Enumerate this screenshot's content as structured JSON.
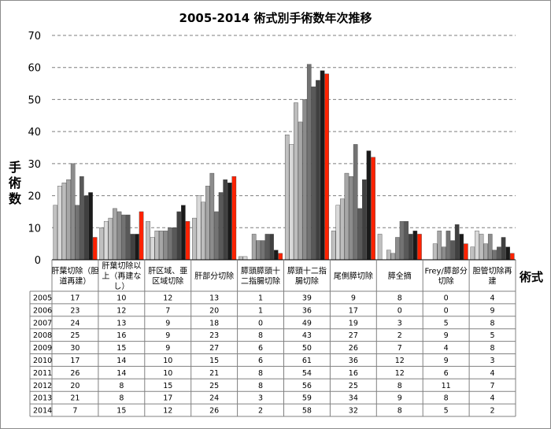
{
  "chart_data": {
    "type": "bar",
    "title": "2005-2014 術式別手術数年次推移",
    "ylabel": "手術数",
    "xlabel": "術式",
    "ylim": [
      0,
      70
    ],
    "yticks": [
      0,
      10,
      20,
      30,
      40,
      50,
      60,
      70
    ],
    "grid": true,
    "categories": [
      [
        "肝葉切除（胆",
        "道再建）"
      ],
      [
        "肝葉切除以",
        "上（再建な",
        "し）"
      ],
      [
        "肝区域、亜",
        "区域切除"
      ],
      [
        "肝部分切除"
      ],
      [
        "膵頭膵頭十",
        "二指腸切除"
      ],
      [
        "膵頭十二指",
        "腸切除"
      ],
      [
        "尾側膵切除"
      ],
      [
        "膵全摘"
      ],
      [
        "Frey/膵部分",
        "切除"
      ],
      [
        "胆管切除再",
        "建"
      ]
    ],
    "series": [
      {
        "name": "2005",
        "color": "#c0c0c0",
        "values": [
          17,
          10,
          12,
          13,
          1,
          39,
          9,
          8,
          0,
          4
        ]
      },
      {
        "name": "2006",
        "color": "#d9d9d9",
        "values": [
          23,
          12,
          7,
          20,
          1,
          36,
          17,
          0,
          0,
          9
        ]
      },
      {
        "name": "2007",
        "color": "#bdbdbd",
        "values": [
          24,
          13,
          9,
          18,
          0,
          49,
          19,
          3,
          5,
          8
        ]
      },
      {
        "name": "2008",
        "color": "#a6a6a6",
        "values": [
          25,
          16,
          9,
          23,
          8,
          43,
          27,
          2,
          9,
          5
        ]
      },
      {
        "name": "2009",
        "color": "#8c8c8c",
        "values": [
          30,
          15,
          9,
          27,
          6,
          50,
          26,
          7,
          4,
          8
        ]
      },
      {
        "name": "2010",
        "color": "#737373",
        "values": [
          17,
          14,
          10,
          15,
          6,
          61,
          36,
          12,
          9,
          3
        ]
      },
      {
        "name": "2011",
        "color": "#595959",
        "values": [
          26,
          14,
          10,
          21,
          8,
          54,
          16,
          12,
          6,
          4
        ]
      },
      {
        "name": "2012",
        "color": "#404040",
        "values": [
          20,
          8,
          15,
          25,
          8,
          56,
          25,
          8,
          11,
          7
        ]
      },
      {
        "name": "2013",
        "color": "#1a1a1a",
        "values": [
          21,
          8,
          17,
          24,
          3,
          59,
          34,
          9,
          8,
          4
        ]
      },
      {
        "name": "2014",
        "color": "#ff2200",
        "values": [
          7,
          15,
          12,
          26,
          2,
          58,
          32,
          8,
          5,
          2
        ]
      }
    ]
  }
}
